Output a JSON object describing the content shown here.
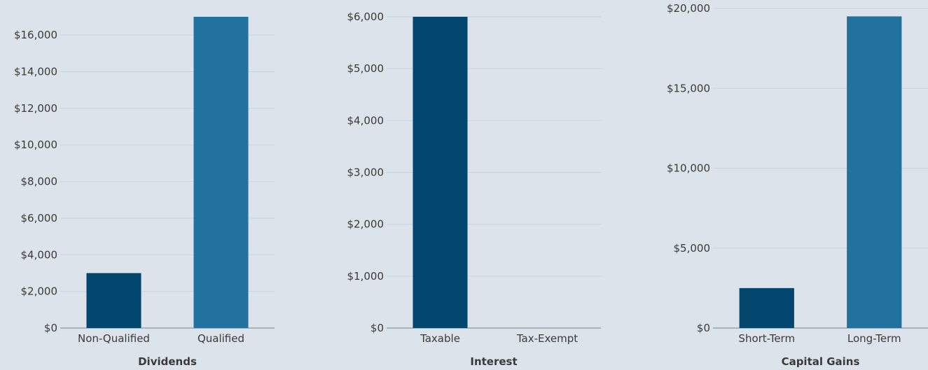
{
  "chart_data": [
    {
      "type": "bar",
      "title": "Dividends",
      "categories": [
        "Non-Qualified",
        "Qualified"
      ],
      "values": [
        3000,
        17000
      ],
      "ylim": [
        0,
        17000
      ],
      "yticks": [
        "$0",
        "$2,000",
        "$4,000",
        "$6,000",
        "$8,000",
        "$10,000",
        "$12,000",
        "$14,000",
        "$16,000"
      ],
      "ytick_values": [
        0,
        2000,
        4000,
        6000,
        8000,
        10000,
        12000,
        14000,
        16000
      ],
      "grid": true
    },
    {
      "type": "bar",
      "title": "Interest",
      "categories": [
        "Taxable",
        "Tax-Exempt"
      ],
      "values": [
        6000,
        0
      ],
      "ylim": [
        0,
        6000
      ],
      "yticks": [
        "$0",
        "$1,000",
        "$2,000",
        "$3,000",
        "$4,000",
        "$5,000",
        "$6,000"
      ],
      "ytick_values": [
        0,
        1000,
        2000,
        3000,
        4000,
        5000,
        6000
      ],
      "grid": true
    },
    {
      "type": "bar",
      "title": "Capital Gains",
      "categories": [
        "Short-Term",
        "Long-Term"
      ],
      "values": [
        2500,
        19500
      ],
      "ylim": [
        0,
        20000
      ],
      "yticks": [
        "$0",
        "$5,000",
        "$10,000",
        "$15,000",
        "$20,000"
      ],
      "ytick_values": [
        0,
        5000,
        10000,
        15000,
        20000
      ],
      "grid": true
    }
  ],
  "colors": {
    "bar_primary": "#03476f",
    "bar_secondary": "#22729f",
    "grid": "#c7d4e0",
    "axis": "#9aa3ad",
    "background": "#dce3eb"
  }
}
